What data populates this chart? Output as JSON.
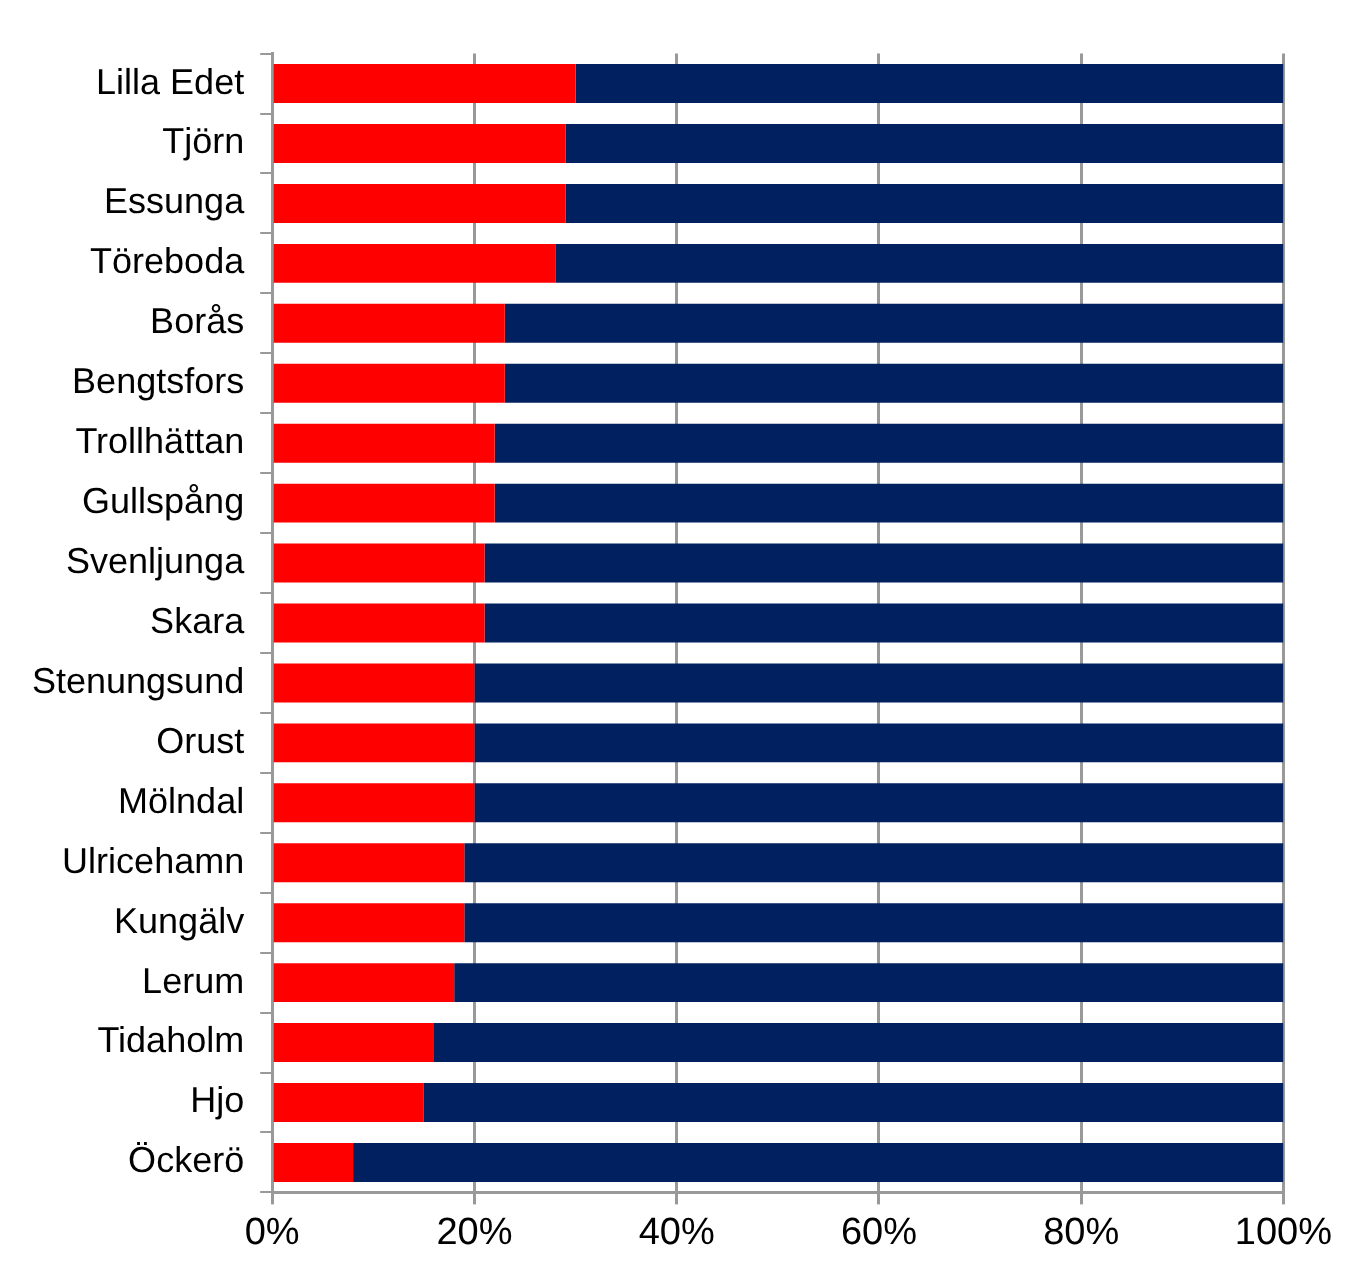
{
  "chart_data": {
    "type": "bar",
    "orientation": "horizontal",
    "stacked": true,
    "grid": "x",
    "legend": false,
    "categories": [
      "Lilla Edet",
      "Tjörn",
      "Essunga",
      "Töreboda",
      "Borås",
      "Bengtsfors",
      "Trollhättan",
      "Gullspång",
      "Svenljunga",
      "Skara",
      "Stenungsund",
      "Orust",
      "Mölndal",
      "Ulricehamn",
      "Kungälv",
      "Lerum",
      "Tidaholm",
      "Hjo",
      "Öckerö"
    ],
    "series": [
      {
        "color": "#ff0000",
        "values": [
          30,
          29,
          29,
          28,
          23,
          23,
          22,
          22,
          21,
          21,
          20,
          20,
          20,
          19,
          19,
          18,
          16,
          15,
          8
        ]
      },
      {
        "color": "#002060",
        "values": [
          70,
          71,
          71,
          72,
          77,
          77,
          78,
          78,
          79,
          79,
          80,
          80,
          80,
          81,
          81,
          82,
          84,
          85,
          92
        ]
      }
    ],
    "xlim": [
      0,
      100
    ],
    "xticks": [
      {
        "value": 0,
        "label": "0%"
      },
      {
        "value": 20,
        "label": "20%"
      },
      {
        "value": 40,
        "label": "40%"
      },
      {
        "value": 60,
        "label": "60%"
      },
      {
        "value": 80,
        "label": "80%"
      },
      {
        "value": 100,
        "label": "100%"
      }
    ]
  }
}
